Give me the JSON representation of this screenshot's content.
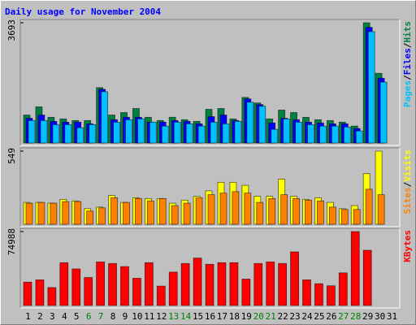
{
  "chart_data": [
    {
      "type": "bar",
      "title": "Daily usage for November 2004",
      "ylim": [
        0,
        3693
      ],
      "yticks": [
        3693
      ],
      "legend_separator": "/",
      "series": [
        {
          "name": "Hits",
          "color": "#008040",
          "values": [
            860,
            1110,
            790,
            740,
            690,
            690,
            1700,
            860,
            935,
            1060,
            790,
            690,
            790,
            715,
            665,
            1035,
            1060,
            740,
            1400,
            1230,
            740,
            1010,
            935,
            790,
            715,
            690,
            640,
            520,
            3693,
            2140,
            0
          ]
        },
        {
          "name": "Files",
          "color": "#0000ff",
          "values": [
            760,
            860,
            665,
            640,
            640,
            590,
            1650,
            715,
            790,
            790,
            640,
            640,
            690,
            665,
            590,
            810,
            860,
            690,
            1355,
            1180,
            615,
            760,
            715,
            640,
            615,
            590,
            590,
            445,
            3550,
            1990,
            0
          ]
        },
        {
          "name": "Pages",
          "color": "#00c0ff",
          "values": [
            690,
            690,
            565,
            565,
            470,
            565,
            1575,
            640,
            715,
            740,
            640,
            520,
            640,
            590,
            520,
            640,
            590,
            665,
            1255,
            1130,
            420,
            740,
            640,
            565,
            520,
            520,
            490,
            370,
            3420,
            1870,
            0
          ]
        }
      ]
    },
    {
      "type": "bar",
      "ylim": [
        0,
        549
      ],
      "yticks": [
        549
      ],
      "series": [
        {
          "name": "Visits",
          "color": "#ffff00",
          "values": [
            164,
            164,
            158,
            187,
            175,
            117,
            129,
            216,
            164,
            199,
            193,
            193,
            158,
            181,
            210,
            251,
            315,
            315,
            292,
            210,
            210,
            339,
            210,
            187,
            199,
            164,
            117,
            140,
            380,
            549,
            0
          ]
        },
        {
          "name": "Sites",
          "color": "#ff8000",
          "values": [
            158,
            164,
            158,
            170,
            170,
            99,
            123,
            199,
            164,
            193,
            175,
            193,
            140,
            158,
            199,
            222,
            234,
            245,
            234,
            164,
            193,
            222,
            193,
            181,
            175,
            129,
            111,
            111,
            263,
            222,
            0
          ]
        }
      ]
    },
    {
      "type": "bar",
      "ylim": [
        0,
        74988
      ],
      "yticks": [
        74988
      ],
      "categories": [
        "1",
        "2",
        "3",
        "4",
        "5",
        "6",
        "7",
        "8",
        "9",
        "10",
        "11",
        "12",
        "13",
        "14",
        "15",
        "16",
        "17",
        "18",
        "19",
        "20",
        "21",
        "22",
        "23",
        "24",
        "25",
        "26",
        "27",
        "28",
        "29",
        "30",
        "31"
      ],
      "category_colors": [
        "#000000",
        "#000000",
        "#000000",
        "#000000",
        "#000000",
        "#008000",
        "#008000",
        "#000000",
        "#000000",
        "#000000",
        "#000000",
        "#000000",
        "#008000",
        "#008000",
        "#000000",
        "#000000",
        "#000000",
        "#000000",
        "#000000",
        "#008000",
        "#008000",
        "#000000",
        "#000000",
        "#000000",
        "#000000",
        "#000000",
        "#008000",
        "#008000",
        "#000000",
        "#000000",
        "#000000"
      ],
      "series": [
        {
          "name": "KBytes",
          "color": "#ff0000",
          "values": [
            23700,
            26000,
            18200,
            43400,
            37100,
            28400,
            44200,
            42600,
            39500,
            27600,
            43400,
            19700,
            33900,
            42600,
            48100,
            41800,
            43400,
            43400,
            26800,
            42600,
            44200,
            42600,
            54400,
            26000,
            22100,
            20000,
            33100,
            74988,
            56000,
            0,
            0
          ]
        }
      ]
    }
  ]
}
